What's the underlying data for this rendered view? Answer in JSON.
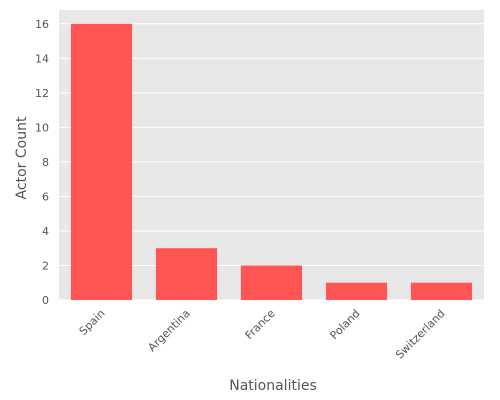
{
  "chart_data": {
    "type": "bar",
    "title": "",
    "xlabel": "Nationalities",
    "ylabel": "Actor Count",
    "categories": [
      "Spain",
      "Argentina",
      "France",
      "Poland",
      "Switzerland"
    ],
    "values": [
      16,
      3,
      2,
      1,
      1
    ],
    "ylim": [
      0,
      16.8
    ],
    "yticks": [
      0,
      2,
      4,
      6,
      8,
      10,
      12,
      14,
      16
    ],
    "grid": true,
    "bar_color": "#ff5555",
    "plot_background": "#e8e8e8",
    "grid_color": "#ffffff",
    "legend": "none"
  }
}
